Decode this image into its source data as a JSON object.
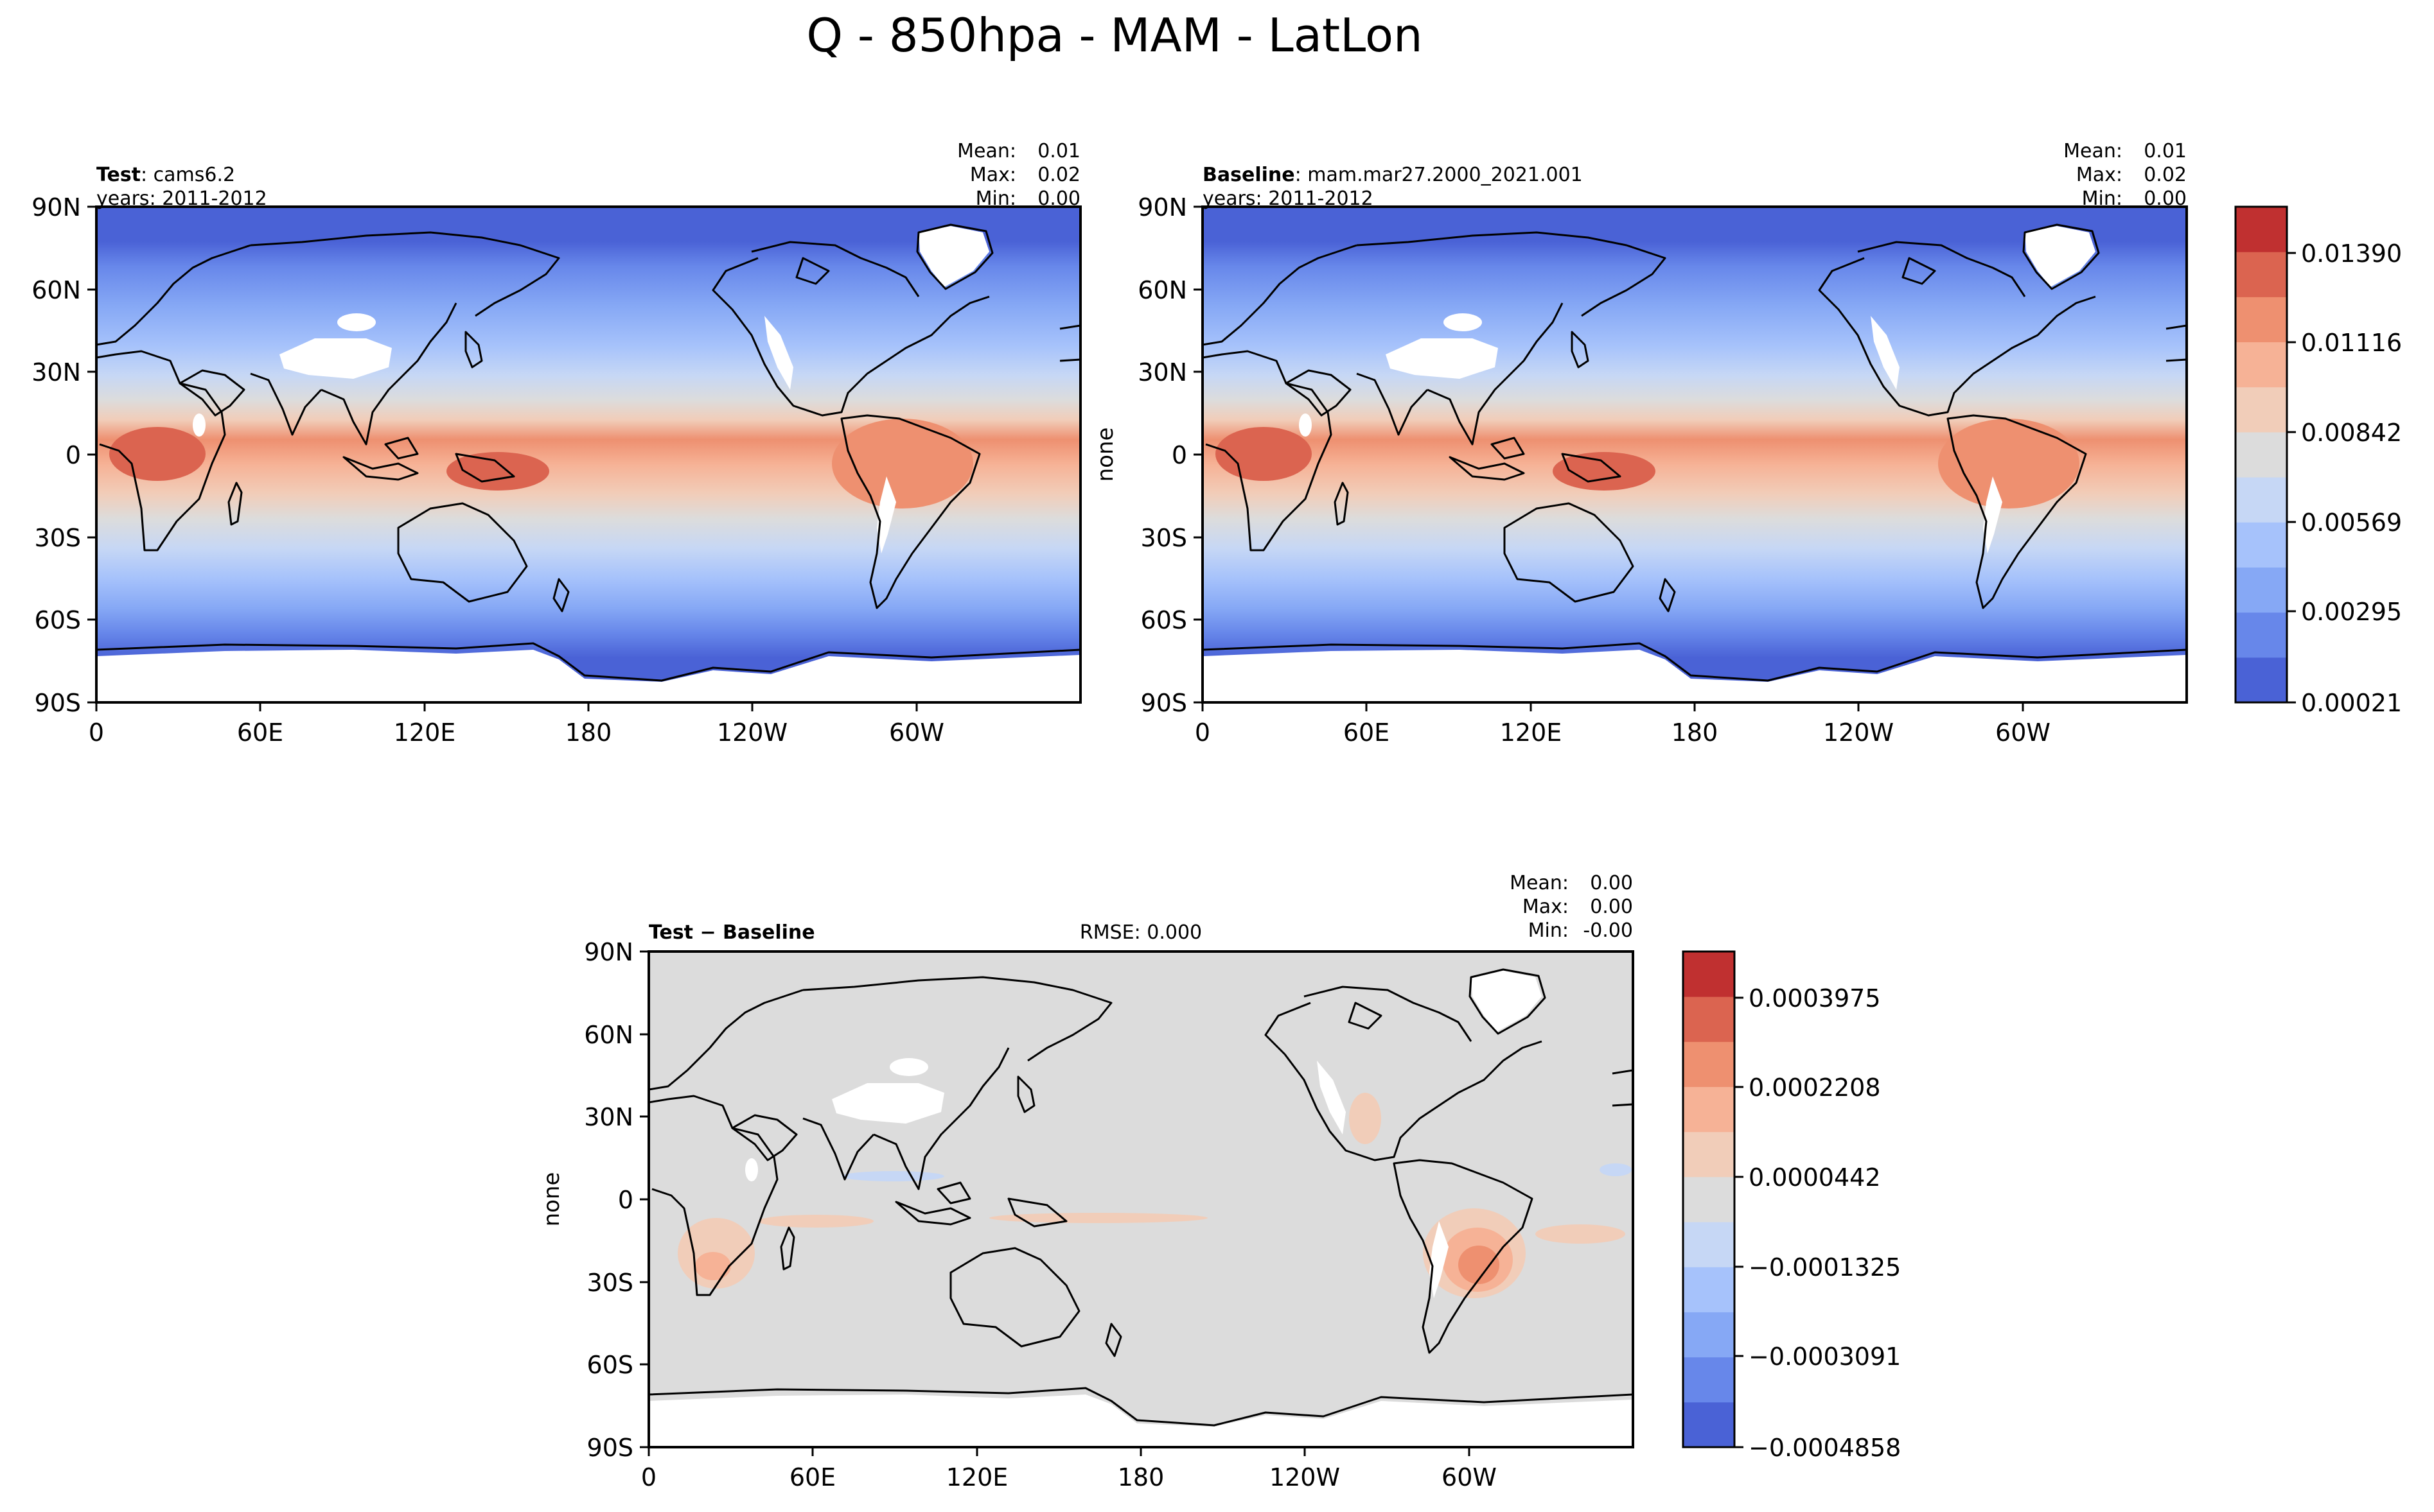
{
  "figure": {
    "title": "Q - 850hpa - MAM - LatLon"
  },
  "chart_data": [
    {
      "type": "heatmap",
      "panel": "test",
      "label_bold": "Test",
      "label_rest": ": cams6.2",
      "years": "years: 2011-2012",
      "stats": [
        {
          "key": "Mean:",
          "value": "0.01"
        },
        {
          "key": "Max:",
          "value": "0.02"
        },
        {
          "key": "Min:",
          "value": "0.00"
        }
      ],
      "xticks": [
        "0",
        "60E",
        "120E",
        "180",
        "120W",
        "60W"
      ],
      "yticks": [
        "90N",
        "60N",
        "30N",
        "0",
        "30S",
        "60S",
        "90S"
      ],
      "ylabel": "",
      "x_range": [
        0,
        360
      ],
      "y_range": [
        -90,
        90
      ]
    },
    {
      "type": "heatmap",
      "panel": "baseline",
      "label_bold": "Baseline",
      "label_rest": ": mam.mar27.2000_2021.001",
      "years": "years: 2011-2012",
      "stats": [
        {
          "key": "Mean:",
          "value": "0.01"
        },
        {
          "key": "Max:",
          "value": "0.02"
        },
        {
          "key": "Min:",
          "value": "0.00"
        }
      ],
      "xticks": [
        "0",
        "60E",
        "120E",
        "180",
        "120W",
        "60W"
      ],
      "yticks": [
        "90N",
        "60N",
        "30N",
        "0",
        "30S",
        "60S",
        "90S"
      ],
      "ylabel": "none",
      "x_range": [
        0,
        360
      ],
      "y_range": [
        -90,
        90
      ],
      "colorbar": {
        "ticks": [
          "0.01390",
          "0.01116",
          "0.00842",
          "0.00569",
          "0.00295",
          "0.00021"
        ],
        "colors": [
          "#4a62d6",
          "#6787ea",
          "#86a8f5",
          "#a6c2fb",
          "#c6d7f5",
          "#dcdcdc",
          "#f1cdb9",
          "#f6b296",
          "#ee9070",
          "#db6450",
          "#c03030"
        ]
      }
    },
    {
      "type": "heatmap",
      "panel": "difference",
      "label_bold": "Test − Baseline",
      "label_rest": "",
      "rmse": "RMSE: 0.000",
      "stats": [
        {
          "key": "Mean:",
          "value": "0.00"
        },
        {
          "key": "Max:",
          "value": "0.00"
        },
        {
          "key": "Min:",
          "value": "-0.00"
        }
      ],
      "xticks": [
        "0",
        "60E",
        "120E",
        "180",
        "120W",
        "60W"
      ],
      "yticks": [
        "90N",
        "60N",
        "30N",
        "0",
        "30S",
        "60S",
        "90S"
      ],
      "ylabel": "none",
      "x_range": [
        0,
        360
      ],
      "y_range": [
        -90,
        90
      ],
      "colorbar": {
        "ticks": [
          "0.0003975",
          "0.0002208",
          "0.0000442",
          "−0.0001325",
          "−0.0003091",
          "−0.0004858"
        ],
        "colors": [
          "#4a62d6",
          "#6787ea",
          "#86a8f5",
          "#a6c2fb",
          "#c6d7f5",
          "#dcdcdc",
          "#f1cdb9",
          "#f6b296",
          "#ee9070",
          "#db6450",
          "#c03030"
        ]
      }
    }
  ]
}
